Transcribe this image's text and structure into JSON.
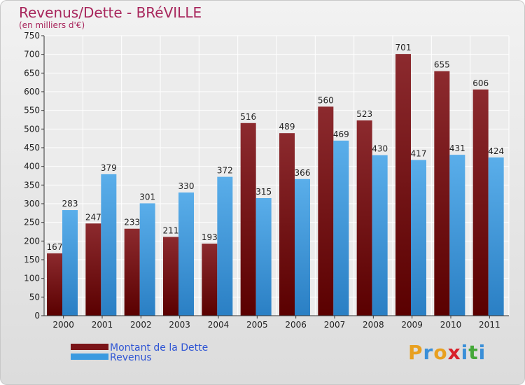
{
  "title": "Revenus/Dette - BRéVILLE",
  "subtitle": "(en milliers d'€)",
  "colors": {
    "dette": "#7a1418",
    "revenus": "#3a9ae0",
    "title": "#a8265c",
    "legend_text": "#2f55d4"
  },
  "chart_data": {
    "type": "bar",
    "title": "Revenus/Dette - BRéVILLE",
    "subtitle": "(en milliers d'€)",
    "categories": [
      "2000",
      "2001",
      "2002",
      "2003",
      "2004",
      "2005",
      "2006",
      "2007",
      "2008",
      "2009",
      "2010",
      "2011"
    ],
    "series": [
      {
        "name": "Montant de la Dette",
        "values": [
          167,
          247,
          233,
          211,
          193,
          516,
          489,
          560,
          523,
          701,
          655,
          606
        ]
      },
      {
        "name": "Revenus",
        "values": [
          283,
          379,
          301,
          330,
          372,
          315,
          366,
          469,
          430,
          417,
          431,
          424
        ]
      }
    ],
    "ylim": [
      0,
      750
    ],
    "yticks": [
      0,
      50,
      100,
      150,
      200,
      250,
      300,
      350,
      400,
      450,
      500,
      550,
      600,
      650,
      700,
      750
    ],
    "grid": true,
    "legend_position": "bottom-left"
  },
  "logo": {
    "text": "Proxiti",
    "letter_colors": [
      "#e8a020",
      "#3a8fd8",
      "#e8a020",
      "#d8202a",
      "#3a8fd8",
      "#44a838",
      "#3a8fd8"
    ]
  }
}
